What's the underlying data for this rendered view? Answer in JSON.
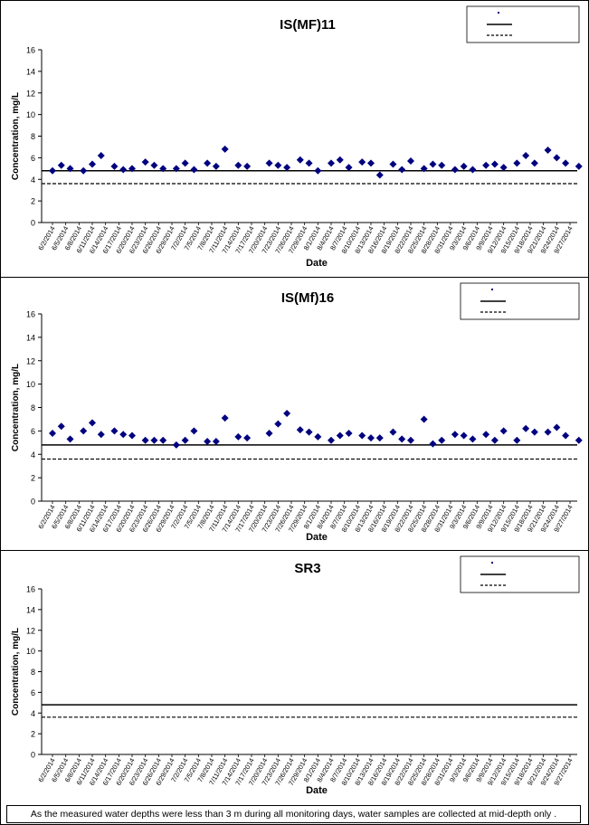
{
  "chart_data": [
    {
      "type": "scatter",
      "title": "IS(MF)11",
      "xlabel": "Date",
      "ylabel": "Concentration, mg/L",
      "ylim": [
        0,
        16
      ],
      "yticks": [
        0,
        2,
        4,
        6,
        8,
        10,
        12,
        14,
        16
      ],
      "grid": false,
      "legend_position": "top-right",
      "legend_entries": [
        "",
        "",
        ""
      ],
      "reference_lines": [
        {
          "value": 4.8,
          "style": "solid"
        },
        {
          "value": 3.6,
          "style": "dashed"
        }
      ],
      "x": [
        "6/2/2014",
        "6/4/2014",
        "6/6/2014",
        "6/9/2014",
        "6/11/2014",
        "6/13/2014",
        "6/16/2014",
        "6/18/2014",
        "6/20/2014",
        "6/23/2014",
        "6/25/2014",
        "6/27/2014",
        "6/30/2014",
        "7/2/2014",
        "7/4/2014",
        "7/7/2014",
        "7/9/2014",
        "7/11/2014",
        "7/14/2014",
        "7/16/2014",
        "7/21/2014",
        "7/23/2014",
        "7/25/2014",
        "7/28/2014",
        "7/30/2014",
        "8/1/2014",
        "8/4/2014",
        "8/6/2014",
        "8/8/2014",
        "8/11/2014",
        "8/13/2014",
        "8/15/2014",
        "8/18/2014",
        "8/20/2014",
        "8/22/2014",
        "8/25/2014",
        "8/27/2014",
        "8/29/2014",
        "9/1/2014",
        "9/3/2014",
        "9/5/2014",
        "9/8/2014",
        "9/10/2014",
        "9/12/2014",
        "9/15/2014",
        "9/17/2014",
        "9/19/2014",
        "9/22/2014",
        "9/24/2014",
        "9/26/2014",
        "9/29/2014"
      ],
      "values": [
        4.8,
        5.3,
        5.0,
        4.8,
        5.4,
        6.2,
        5.2,
        4.9,
        5.0,
        5.6,
        5.3,
        5.0,
        5.0,
        5.5,
        4.9,
        5.5,
        5.2,
        6.8,
        5.3,
        5.2,
        5.5,
        5.3,
        5.1,
        5.8,
        5.5,
        4.8,
        5.5,
        5.8,
        5.1,
        5.6,
        5.5,
        4.4,
        5.4,
        4.9,
        5.7,
        5.0,
        5.4,
        5.3,
        4.9,
        5.2,
        4.9,
        5.3,
        5.4,
        5.1,
        5.5,
        6.2,
        5.5,
        6.7,
        6.0,
        5.5,
        5.2
      ]
    },
    {
      "type": "scatter",
      "title": "IS(Mf)16",
      "xlabel": "Date",
      "ylabel": "Concentration, mg/L",
      "ylim": [
        0,
        16
      ],
      "yticks": [
        0,
        2,
        4,
        6,
        8,
        10,
        12,
        14,
        16
      ],
      "grid": false,
      "legend_position": "top-right",
      "legend_entries": [
        "",
        "",
        ""
      ],
      "reference_lines": [
        {
          "value": 4.8,
          "style": "solid"
        },
        {
          "value": 3.6,
          "style": "dashed"
        }
      ],
      "x": [
        "6/2/2014",
        "6/4/2014",
        "6/6/2014",
        "6/9/2014",
        "6/11/2014",
        "6/13/2014",
        "6/16/2014",
        "6/18/2014",
        "6/20/2014",
        "6/23/2014",
        "6/25/2014",
        "6/27/2014",
        "6/30/2014",
        "7/2/2014",
        "7/4/2014",
        "7/7/2014",
        "7/9/2014",
        "7/11/2014",
        "7/14/2014",
        "7/16/2014",
        "7/21/2014",
        "7/23/2014",
        "7/25/2014",
        "7/28/2014",
        "7/30/2014",
        "8/1/2014",
        "8/4/2014",
        "8/6/2014",
        "8/8/2014",
        "8/11/2014",
        "8/13/2014",
        "8/15/2014",
        "8/18/2014",
        "8/20/2014",
        "8/22/2014",
        "8/25/2014",
        "8/27/2014",
        "8/29/2014",
        "9/1/2014",
        "9/3/2014",
        "9/5/2014",
        "9/8/2014",
        "9/10/2014",
        "9/12/2014",
        "9/15/2014",
        "9/17/2014",
        "9/19/2014",
        "9/22/2014",
        "9/24/2014",
        "9/26/2014",
        "9/29/2014"
      ],
      "values": [
        5.8,
        6.4,
        5.3,
        6.0,
        6.7,
        5.7,
        6.0,
        5.7,
        5.6,
        5.2,
        5.2,
        5.2,
        4.8,
        5.2,
        6.0,
        5.1,
        5.1,
        7.1,
        5.5,
        5.4,
        5.8,
        6.6,
        7.5,
        6.1,
        5.9,
        5.5,
        5.2,
        5.6,
        5.8,
        5.6,
        5.4,
        5.4,
        5.9,
        5.3,
        5.2,
        7.0,
        4.9,
        5.2,
        5.7,
        5.6,
        5.3,
        5.7,
        5.2,
        6.0,
        5.2,
        6.2,
        5.9,
        5.9,
        6.3,
        5.6,
        5.2
      ]
    },
    {
      "type": "scatter",
      "title": "SR3",
      "xlabel": "Date",
      "ylabel": "Concentration, mg/L",
      "ylim": [
        0,
        16
      ],
      "yticks": [
        0,
        2,
        4,
        6,
        8,
        10,
        12,
        14,
        16
      ],
      "grid": false,
      "legend_position": "top-right",
      "legend_entries": [
        "",
        "",
        ""
      ],
      "reference_lines": [
        {
          "value": 4.8,
          "style": "solid"
        },
        {
          "value": 3.6,
          "style": "dashed"
        }
      ],
      "x": [],
      "values": []
    }
  ],
  "x_tick_labels": [
    "6/2/2014",
    "6/5/2014",
    "6/8/2014",
    "6/11/2014",
    "6/14/2014",
    "6/17/2014",
    "6/20/2014",
    "6/23/2014",
    "6/26/2014",
    "6/29/2014",
    "7/2/2014",
    "7/5/2014",
    "7/8/2014",
    "7/11/2014",
    "7/14/2014",
    "7/17/2014",
    "7/20/2014",
    "7/23/2014",
    "7/26/2014",
    "7/29/2014",
    "8/1/2014",
    "8/4/2014",
    "8/7/2014",
    "8/10/2014",
    "8/13/2014",
    "8/16/2014",
    "8/19/2014",
    "8/22/2014",
    "8/25/2014",
    "8/28/2014",
    "8/31/2014",
    "9/3/2014",
    "9/6/2014",
    "9/9/2014",
    "9/12/2014",
    "9/15/2014",
    "9/18/2014",
    "9/21/2014",
    "9/24/2014",
    "9/27/2014"
  ],
  "note": "As the measured water depths were less than 3 m during all monitoring days, water samples are collected  at mid-depth only .",
  "colors": {
    "marker": "#00007f",
    "axis": "#000000",
    "line": "#000000"
  }
}
